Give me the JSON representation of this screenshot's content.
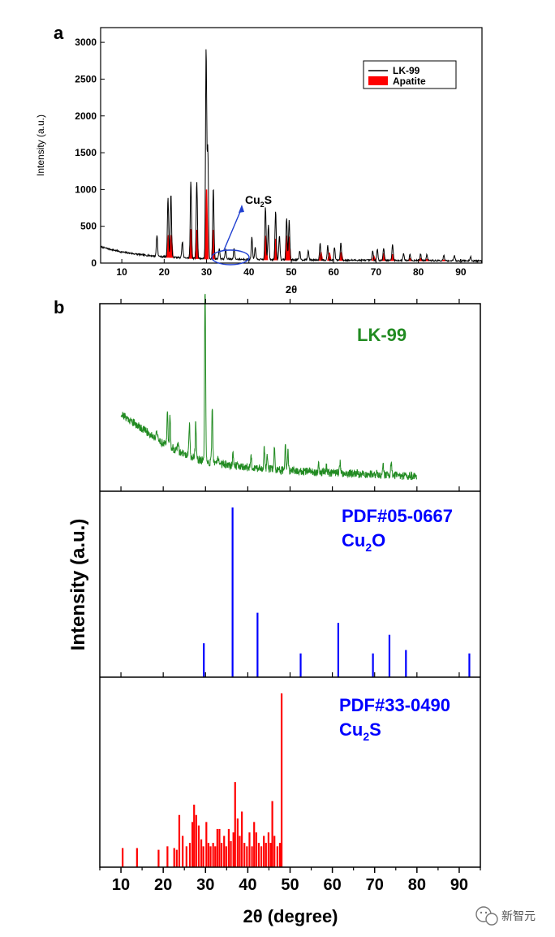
{
  "watermark": {
    "text": "新智元"
  },
  "chart_data": [
    {
      "panel": "a",
      "type": "line",
      "xlabel": "2θ",
      "ylabel": "Intensity (a.u.)",
      "xlim": [
        5,
        95
      ],
      "ylim": [
        0,
        3200
      ],
      "xticks": [
        10,
        20,
        30,
        40,
        50,
        60,
        70,
        80,
        90
      ],
      "yticks": [
        0,
        500,
        1000,
        1500,
        2000,
        2500,
        3000
      ],
      "legend_position": "top-right",
      "annotation": "Cu2S",
      "series": [
        {
          "name": "LK-99",
          "color": "#000000",
          "baseline": [
            [
              5,
              220
            ],
            [
              10,
              150
            ],
            [
              15,
              110
            ],
            [
              20,
              85
            ],
            [
              25,
              70
            ],
            [
              30,
              60
            ],
            [
              40,
              50
            ],
            [
              50,
              45
            ],
            [
              60,
              40
            ],
            [
              70,
              38
            ],
            [
              80,
              35
            ],
            [
              95,
              30
            ]
          ],
          "peaks": [
            [
              18.3,
              290
            ],
            [
              20.9,
              810
            ],
            [
              21.6,
              870
            ],
            [
              24.3,
              220
            ],
            [
              26.3,
              1050
            ],
            [
              27.7,
              1050
            ],
            [
              29.9,
              2850
            ],
            [
              30.3,
              1500
            ],
            [
              31.6,
              970
            ],
            [
              33.0,
              140
            ],
            [
              34.5,
              130
            ],
            [
              36.5,
              150
            ],
            [
              40.7,
              300
            ],
            [
              41.5,
              170
            ],
            [
              43.9,
              720
            ],
            [
              44.6,
              480
            ],
            [
              46.3,
              660
            ],
            [
              47.2,
              330
            ],
            [
              48.9,
              560
            ],
            [
              49.5,
              540
            ],
            [
              52.0,
              120
            ],
            [
              54.0,
              130
            ],
            [
              56.8,
              230
            ],
            [
              58.6,
              190
            ],
            [
              60.2,
              170
            ],
            [
              61.7,
              240
            ],
            [
              69.2,
              120
            ],
            [
              70.3,
              150
            ],
            [
              71.8,
              170
            ],
            [
              73.9,
              220
            ],
            [
              76.5,
              100
            ],
            [
              78.0,
              90
            ],
            [
              80.5,
              90
            ],
            [
              82.0,
              80
            ],
            [
              86.0,
              70
            ],
            [
              88.5,
              70
            ],
            [
              92.3,
              60
            ]
          ]
        },
        {
          "name": "Apatite",
          "color": "#ff0000",
          "peaks": [
            [
              21.0,
              380
            ],
            [
              21.7,
              380
            ],
            [
              26.3,
              460
            ],
            [
              27.7,
              450
            ],
            [
              30.0,
              1000
            ],
            [
              31.6,
              450
            ],
            [
              44.0,
              370
            ],
            [
              46.3,
              330
            ],
            [
              48.9,
              370
            ],
            [
              49.5,
              360
            ],
            [
              57.0,
              150
            ],
            [
              59.0,
              140
            ],
            [
              61.8,
              150
            ],
            [
              69.5,
              90
            ],
            [
              71.8,
              130
            ],
            [
              73.9,
              120
            ],
            [
              78.0,
              60
            ],
            [
              80.5,
              60
            ],
            [
              82.0,
              50
            ],
            [
              86.0,
              40
            ]
          ]
        }
      ]
    },
    {
      "panel": "b",
      "type": "line",
      "xlabel": "2θ (degree)",
      "ylabel": "Intensity (a.u.)",
      "xlim": [
        5,
        95
      ],
      "xticks": [
        10,
        20,
        30,
        40,
        50,
        60,
        70,
        80,
        90
      ],
      "series": [
        {
          "name": "LK-99",
          "color": "#228b22",
          "xrange": [
            10,
            80
          ],
          "baseline": [
            [
              10,
              0.42
            ],
            [
              15,
              0.34
            ],
            [
              20,
              0.26
            ],
            [
              25,
              0.2
            ],
            [
              30,
              0.16
            ],
            [
              40,
              0.13
            ],
            [
              50,
              0.11
            ],
            [
              60,
              0.1
            ],
            [
              70,
              0.09
            ],
            [
              80,
              0.08
            ]
          ],
          "peaks": [
            [
              18.4,
              0.05
            ],
            [
              21.0,
              0.2
            ],
            [
              21.6,
              0.16
            ],
            [
              23.5,
              0.05
            ],
            [
              26.2,
              0.18
            ],
            [
              27.7,
              0.2
            ],
            [
              29.9,
              0.93
            ],
            [
              31.6,
              0.3
            ],
            [
              33.0,
              0.04
            ],
            [
              36.5,
              0.07
            ],
            [
              40.8,
              0.06
            ],
            [
              43.9,
              0.12
            ],
            [
              44.6,
              0.09
            ],
            [
              46.3,
              0.12
            ],
            [
              48.9,
              0.14
            ],
            [
              49.5,
              0.1
            ],
            [
              56.8,
              0.05
            ],
            [
              58.6,
              0.04
            ],
            [
              61.8,
              0.06
            ],
            [
              70.5,
              0.04
            ],
            [
              72.0,
              0.06
            ],
            [
              73.9,
              0.07
            ]
          ]
        },
        {
          "name": "PDF#05-0667",
          "formula": "Cu2O",
          "color": "#0000ff",
          "type": "stick",
          "sticks": [
            [
              29.6,
              0.2
            ],
            [
              36.4,
              1.0
            ],
            [
              42.3,
              0.38
            ],
            [
              52.5,
              0.14
            ],
            [
              61.4,
              0.32
            ],
            [
              69.6,
              0.14
            ],
            [
              73.5,
              0.25
            ],
            [
              77.4,
              0.16
            ],
            [
              92.4,
              0.14
            ]
          ]
        },
        {
          "name": "PDF#33-0490",
          "formula": "Cu2S",
          "color": "#ff0000",
          "type": "stick",
          "sticks": [
            [
              10.4,
              0.11
            ],
            [
              13.8,
              0.11
            ],
            [
              18.9,
              0.1
            ],
            [
              21.0,
              0.12
            ],
            [
              22.6,
              0.11
            ],
            [
              23.2,
              0.1
            ],
            [
              23.8,
              0.3
            ],
            [
              24.6,
              0.18
            ],
            [
              25.5,
              0.12
            ],
            [
              26.3,
              0.14
            ],
            [
              26.9,
              0.26
            ],
            [
              27.3,
              0.36
            ],
            [
              27.8,
              0.3
            ],
            [
              28.4,
              0.24
            ],
            [
              29.0,
              0.16
            ],
            [
              29.5,
              0.12
            ],
            [
              30.2,
              0.26
            ],
            [
              30.7,
              0.14
            ],
            [
              31.2,
              0.12
            ],
            [
              31.8,
              0.14
            ],
            [
              32.3,
              0.12
            ],
            [
              32.8,
              0.22
            ],
            [
              33.3,
              0.22
            ],
            [
              33.8,
              0.14
            ],
            [
              34.4,
              0.18
            ],
            [
              34.9,
              0.12
            ],
            [
              35.5,
              0.22
            ],
            [
              36.0,
              0.15
            ],
            [
              36.6,
              0.2
            ],
            [
              37.0,
              0.49
            ],
            [
              37.6,
              0.28
            ],
            [
              38.1,
              0.18
            ],
            [
              38.6,
              0.32
            ],
            [
              39.2,
              0.14
            ],
            [
              39.8,
              0.12
            ],
            [
              40.4,
              0.2
            ],
            [
              41.0,
              0.12
            ],
            [
              41.5,
              0.26
            ],
            [
              42.0,
              0.2
            ],
            [
              42.6,
              0.14
            ],
            [
              43.2,
              0.12
            ],
            [
              43.8,
              0.18
            ],
            [
              44.3,
              0.14
            ],
            [
              44.9,
              0.2
            ],
            [
              45.4,
              0.14
            ],
            [
              45.8,
              0.38
            ],
            [
              46.3,
              0.18
            ],
            [
              47.0,
              0.12
            ],
            [
              47.6,
              0.14
            ],
            [
              48.0,
              1.0
            ]
          ]
        }
      ]
    }
  ]
}
